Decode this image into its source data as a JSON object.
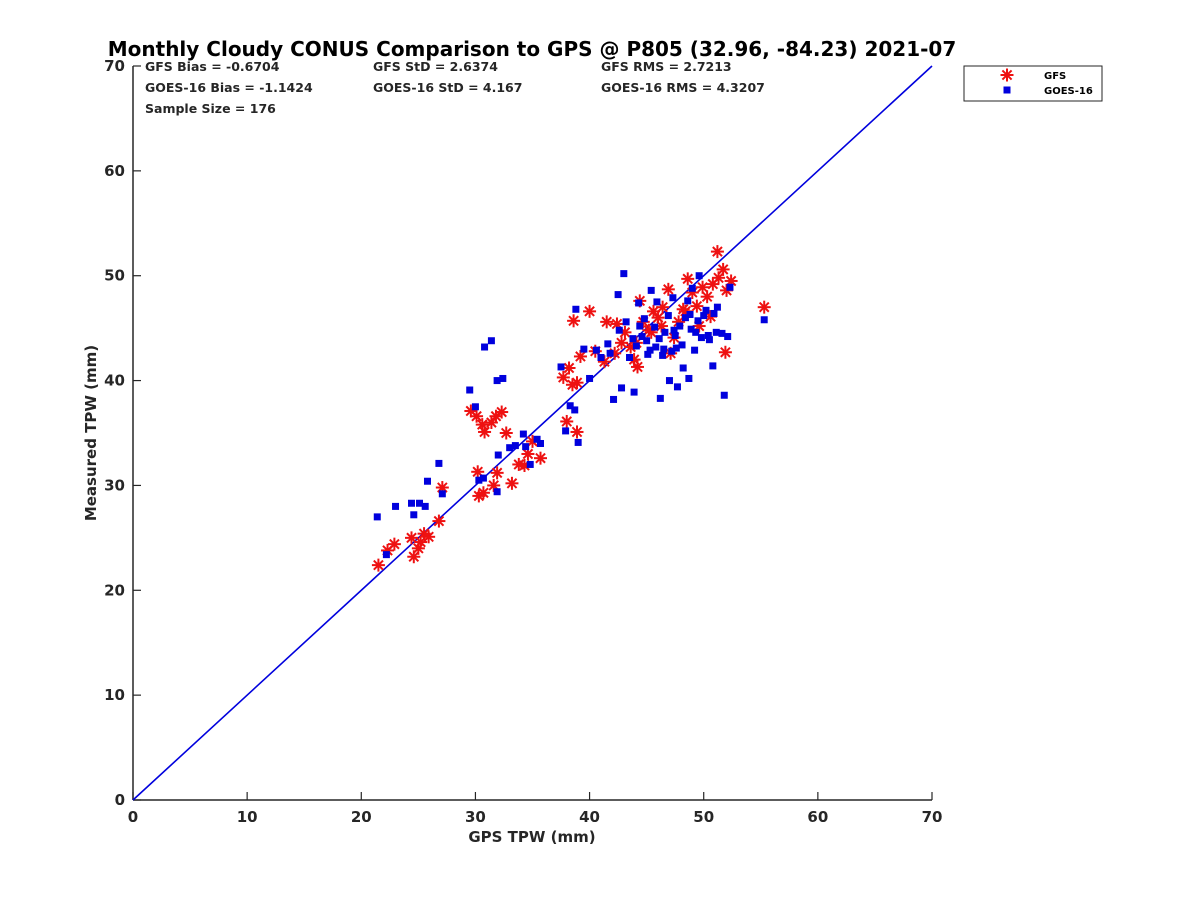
{
  "chart_data": {
    "type": "scatter",
    "title": "Monthly Cloudy CONUS Comparison to GPS @ P805 (32.96, -84.23) 2021-07",
    "xlabel": "GPS TPW (mm)",
    "ylabel": "Measured TPW (mm)",
    "xlim": [
      0,
      70
    ],
    "ylim": [
      0,
      70
    ],
    "xticks": [
      "0",
      "10",
      "20",
      "30",
      "40",
      "50",
      "60",
      "70"
    ],
    "yticks": [
      "0",
      "10",
      "20",
      "30",
      "40",
      "50",
      "60",
      "70"
    ],
    "grid": false,
    "legend_position": "top-right",
    "stats": {
      "gfs_bias": "GFS Bias = -0.6704",
      "gfs_std": "GFS StD = 2.6374",
      "gfs_rms": "GFS RMS = 2.7213",
      "goes_bias": "GOES-16 Bias = -1.1424",
      "goes_std": "GOES-16 StD = 4.167",
      "goes_rms": "GOES-16 RMS = 4.3207",
      "sample_size": "Sample Size = 176"
    },
    "reference_line": {
      "from": [
        0,
        0
      ],
      "to": [
        70,
        70
      ],
      "color": "#0000dd"
    },
    "series": [
      {
        "name": "GFS",
        "marker": "asterisk",
        "color": "#ee1111",
        "points": [
          [
            21.5,
            22.4
          ],
          [
            22.3,
            23.8
          ],
          [
            22.9,
            24.4
          ],
          [
            24.4,
            25.0
          ],
          [
            24.6,
            23.2
          ],
          [
            25.0,
            24.0
          ],
          [
            25.2,
            24.6
          ],
          [
            25.5,
            25.4
          ],
          [
            25.9,
            25.1
          ],
          [
            26.8,
            26.6
          ],
          [
            27.1,
            29.8
          ],
          [
            29.6,
            37.1
          ],
          [
            30.1,
            36.6
          ],
          [
            30.6,
            35.8
          ],
          [
            30.8,
            35.1
          ],
          [
            31.4,
            36.0
          ],
          [
            31.8,
            36.6
          ],
          [
            32.3,
            37.0
          ],
          [
            32.7,
            35.0
          ],
          [
            30.2,
            31.3
          ],
          [
            30.3,
            29.0
          ],
          [
            30.7,
            29.3
          ],
          [
            31.6,
            30.0
          ],
          [
            31.9,
            31.2
          ],
          [
            33.2,
            30.2
          ],
          [
            33.8,
            32.0
          ],
          [
            34.3,
            31.9
          ],
          [
            34.6,
            33.0
          ],
          [
            35.0,
            34.2
          ],
          [
            35.7,
            32.6
          ],
          [
            37.7,
            40.3
          ],
          [
            38.2,
            41.2
          ],
          [
            38.5,
            39.6
          ],
          [
            38.9,
            39.8
          ],
          [
            38.0,
            36.1
          ],
          [
            38.9,
            35.1
          ],
          [
            38.6,
            45.7
          ],
          [
            39.2,
            42.3
          ],
          [
            40.0,
            46.6
          ],
          [
            40.5,
            42.8
          ],
          [
            41.5,
            45.6
          ],
          [
            42.4,
            45.4
          ],
          [
            42.8,
            43.6
          ],
          [
            43.1,
            44.6
          ],
          [
            43.6,
            43.2
          ],
          [
            43.9,
            42.0
          ],
          [
            44.2,
            41.3
          ],
          [
            44.4,
            47.6
          ],
          [
            44.7,
            45.6
          ],
          [
            45.2,
            44.8
          ],
          [
            45.6,
            46.6
          ],
          [
            46.0,
            46.0
          ],
          [
            46.4,
            47.0
          ],
          [
            46.9,
            48.7
          ],
          [
            47.4,
            44.1
          ],
          [
            47.8,
            45.6
          ],
          [
            48.2,
            46.8
          ],
          [
            48.6,
            49.7
          ],
          [
            49.0,
            48.4
          ],
          [
            49.4,
            47.1
          ],
          [
            49.9,
            48.9
          ],
          [
            50.3,
            48.0
          ],
          [
            50.8,
            49.2
          ],
          [
            51.2,
            52.3
          ],
          [
            51.7,
            50.6
          ],
          [
            51.9,
            42.7
          ],
          [
            52.0,
            48.6
          ],
          [
            52.4,
            49.5
          ],
          [
            55.3,
            47.0
          ],
          [
            41.3,
            41.8
          ],
          [
            42.2,
            42.6
          ],
          [
            44.1,
            43.6
          ],
          [
            45.4,
            44.6
          ],
          [
            46.3,
            45.2
          ],
          [
            47.1,
            42.6
          ],
          [
            48.4,
            46.6
          ],
          [
            49.6,
            45.2
          ],
          [
            50.6,
            46.1
          ],
          [
            51.3,
            49.8
          ]
        ]
      },
      {
        "name": "GOES-16",
        "marker": "square",
        "color": "#0000dd",
        "points": [
          [
            21.4,
            27.0
          ],
          [
            22.2,
            23.4
          ],
          [
            23.0,
            28.0
          ],
          [
            24.4,
            28.3
          ],
          [
            24.6,
            27.2
          ],
          [
            25.1,
            28.3
          ],
          [
            25.6,
            28.0
          ],
          [
            25.8,
            30.4
          ],
          [
            26.8,
            32.1
          ],
          [
            27.1,
            29.2
          ],
          [
            29.5,
            39.1
          ],
          [
            30.0,
            37.5
          ],
          [
            30.3,
            30.5
          ],
          [
            30.8,
            43.2
          ],
          [
            30.7,
            30.7
          ],
          [
            31.4,
            43.8
          ],
          [
            31.9,
            40.0
          ],
          [
            32.4,
            40.2
          ],
          [
            31.9,
            29.4
          ],
          [
            32.0,
            32.9
          ],
          [
            33.0,
            33.6
          ],
          [
            33.5,
            33.8
          ],
          [
            34.2,
            34.9
          ],
          [
            34.4,
            33.7
          ],
          [
            34.8,
            32.0
          ],
          [
            35.4,
            34.4
          ],
          [
            35.7,
            34.0
          ],
          [
            37.5,
            41.3
          ],
          [
            37.9,
            35.2
          ],
          [
            38.3,
            37.6
          ],
          [
            38.7,
            37.2
          ],
          [
            38.8,
            46.8
          ],
          [
            39.0,
            34.1
          ],
          [
            39.5,
            43.0
          ],
          [
            40.0,
            40.2
          ],
          [
            40.6,
            42.9
          ],
          [
            41.0,
            42.2
          ],
          [
            41.6,
            43.5
          ],
          [
            42.1,
            38.2
          ],
          [
            42.5,
            48.2
          ],
          [
            42.8,
            39.3
          ],
          [
            43.0,
            50.2
          ],
          [
            43.5,
            42.2
          ],
          [
            43.9,
            38.9
          ],
          [
            44.3,
            47.4
          ],
          [
            44.6,
            44.2
          ],
          [
            45.0,
            43.8
          ],
          [
            45.4,
            48.6
          ],
          [
            45.8,
            43.2
          ],
          [
            46.2,
            38.3
          ],
          [
            46.6,
            44.6
          ],
          [
            47.0,
            40.0
          ],
          [
            47.4,
            44.8
          ],
          [
            47.7,
            39.4
          ],
          [
            48.2,
            41.2
          ],
          [
            48.4,
            46.0
          ],
          [
            48.7,
            40.2
          ],
          [
            49.0,
            48.8
          ],
          [
            49.3,
            44.6
          ],
          [
            49.6,
            50.0
          ],
          [
            50.0,
            46.2
          ],
          [
            50.4,
            44.3
          ],
          [
            50.8,
            41.4
          ],
          [
            51.2,
            47.0
          ],
          [
            51.6,
            44.5
          ],
          [
            51.8,
            38.6
          ],
          [
            52.1,
            44.2
          ],
          [
            52.3,
            48.9
          ],
          [
            55.3,
            45.8
          ],
          [
            41.8,
            42.6
          ],
          [
            42.6,
            44.8
          ],
          [
            43.2,
            45.6
          ],
          [
            43.8,
            44.0
          ],
          [
            44.1,
            43.3
          ],
          [
            44.8,
            45.9
          ],
          [
            45.3,
            42.9
          ],
          [
            45.7,
            45.1
          ],
          [
            46.1,
            44.0
          ],
          [
            46.5,
            43.0
          ],
          [
            46.9,
            46.2
          ],
          [
            47.2,
            42.8
          ],
          [
            47.5,
            44.3
          ],
          [
            47.9,
            45.2
          ],
          [
            48.1,
            43.4
          ],
          [
            48.6,
            47.6
          ],
          [
            48.9,
            44.9
          ],
          [
            49.2,
            42.9
          ],
          [
            49.5,
            45.7
          ],
          [
            49.8,
            44.1
          ],
          [
            50.2,
            46.7
          ],
          [
            50.5,
            43.9
          ],
          [
            50.9,
            46.4
          ],
          [
            51.1,
            44.6
          ],
          [
            45.1,
            42.5
          ],
          [
            46.4,
            42.4
          ],
          [
            47.6,
            43.1
          ],
          [
            44.4,
            45.2
          ],
          [
            45.9,
            47.5
          ],
          [
            47.3,
            47.9
          ],
          [
            48.8,
            46.3
          ]
        ]
      }
    ]
  }
}
